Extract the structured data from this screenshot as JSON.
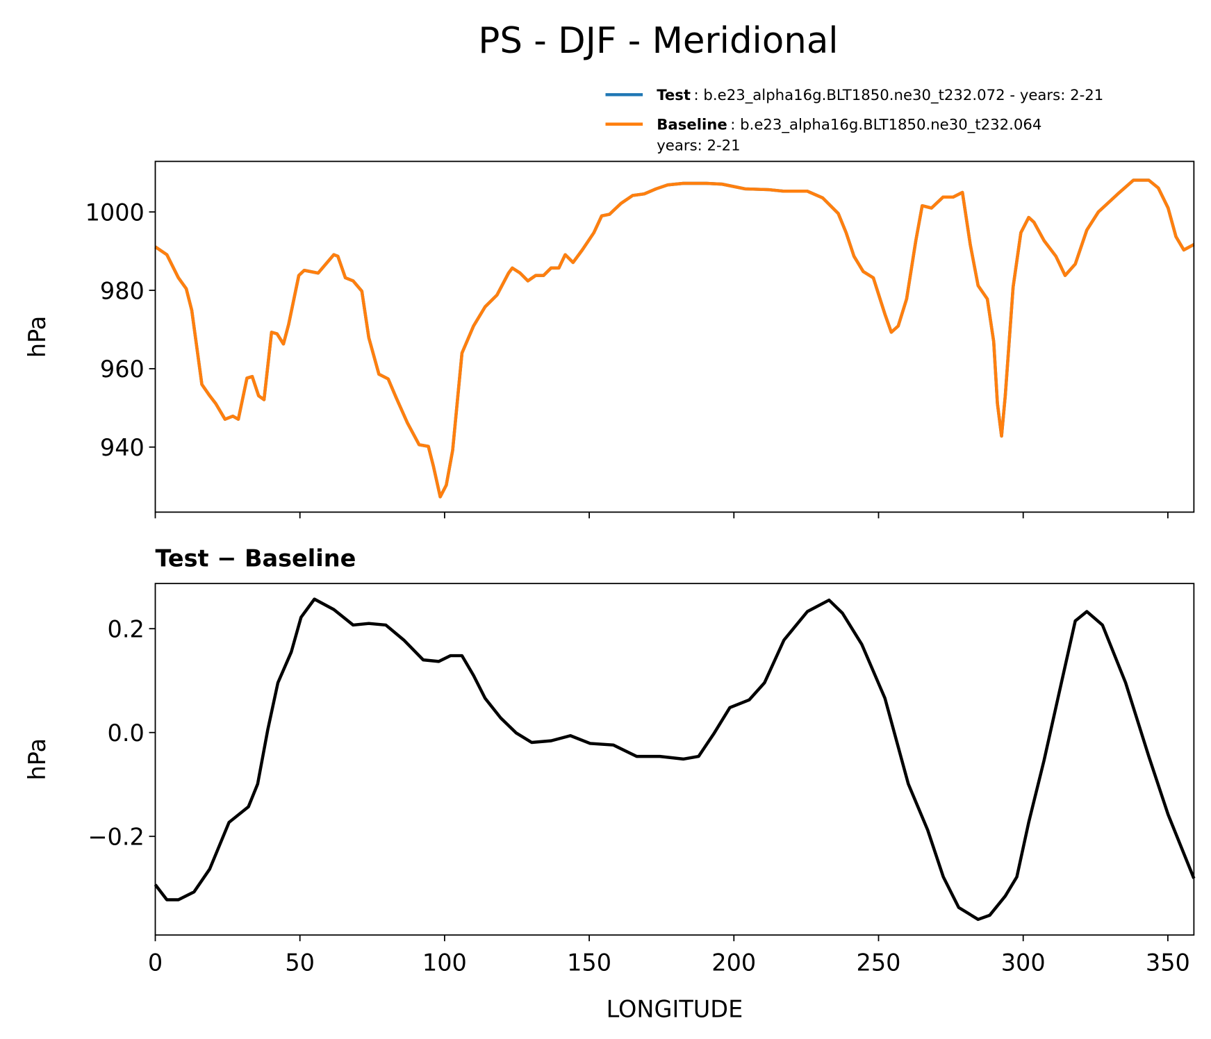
{
  "chart_data": [
    {
      "type": "line",
      "title": "PS - DJF - Meridional",
      "ylabel": "hPa",
      "x": [
        0,
        4.0,
        8.0,
        10.7,
        12.6,
        14.8,
        16.1,
        18.8,
        20.9,
        24.1,
        26.8,
        28.7,
        31.7,
        33.5,
        35.7,
        37.6,
        40.2,
        42.1,
        44.3,
        46.1,
        49.6,
        51.5,
        56.3,
        61.7,
        63.1,
        65.7,
        68.4,
        71.4,
        73.8,
        77.3,
        80.5,
        83.2,
        87.2,
        91.2,
        94.4,
        96.1,
        98.5,
        100.6,
        102.8,
        106.0,
        110.0,
        114.0,
        118.1,
        122.1,
        123.4,
        126.1,
        128.8,
        131.5,
        134.2,
        136.8,
        139.5,
        141.7,
        144.4,
        147.6,
        151.6,
        154.3,
        157.0,
        161.0,
        165.0,
        169.0,
        173.1,
        177.1,
        182.5,
        190.5,
        195.9,
        203.9,
        212.0,
        217.3,
        225.4,
        230.7,
        236.1,
        238.8,
        241.5,
        244.7,
        248.2,
        252.2,
        254.4,
        256.8,
        259.7,
        262.9,
        265.1,
        268.3,
        272.3,
        275.8,
        279.0,
        281.7,
        284.4,
        287.6,
        289.8,
        291.1,
        292.5,
        293.8,
        296.5,
        299.2,
        301.9,
        303.7,
        307.2,
        311.3,
        314.5,
        318.0,
        322.0,
        326.0,
        332.7,
        338.1,
        343.4,
        346.7,
        350.1,
        352.8,
        355.5,
        359.0
      ],
      "series": [
        {
          "name": "Test",
          "description": [
            ": b.e23_alpha16g.BLT1850.ne30_t232.072 - years: 2-21"
          ],
          "color": "#1f77b4",
          "values": [
            991.1,
            989.1,
            983.2,
            980.4,
            974.9,
            963.0,
            956.0,
            953.1,
            951.1,
            947.1,
            947.9,
            947.1,
            957.6,
            958.0,
            953.1,
            952.1,
            969.3,
            968.9,
            966.3,
            971.3,
            983.8,
            985.1,
            984.4,
            989.1,
            988.7,
            983.2,
            982.4,
            979.8,
            967.9,
            958.6,
            957.4,
            952.7,
            946.1,
            940.6,
            940.2,
            935.2,
            927.3,
            930.3,
            939.2,
            964.0,
            970.9,
            975.8,
            978.8,
            984.4,
            985.7,
            984.4,
            982.4,
            983.8,
            983.8,
            985.7,
            985.7,
            989.1,
            987.1,
            990.3,
            994.7,
            999.0,
            999.4,
            1002.2,
            1004.2,
            1004.6,
            1005.9,
            1006.9,
            1007.3,
            1007.3,
            1007.1,
            1005.9,
            1005.7,
            1005.3,
            1005.3,
            1003.6,
            999.6,
            994.7,
            988.7,
            984.8,
            983.2,
            973.9,
            969.3,
            970.9,
            977.8,
            992.7,
            1001.6,
            1001.0,
            1003.8,
            1003.8,
            1005.0,
            991.7,
            981.2,
            977.8,
            966.9,
            951.1,
            942.8,
            953.1,
            980.8,
            994.7,
            998.6,
            997.4,
            992.7,
            988.7,
            983.8,
            986.7,
            995.4,
            1000.0,
            1004.6,
            1008.1,
            1008.1,
            1006.1,
            1001.0,
            993.7,
            990.3,
            991.7
          ]
        },
        {
          "name": "Baseline",
          "description": [
            ": b.e23_alpha16g.BLT1850.ne30_t232.064",
            "years: 2-21"
          ],
          "color": "#ff7f0e",
          "values": [
            991.1,
            989.1,
            983.2,
            980.4,
            974.9,
            963.0,
            956.0,
            953.1,
            951.1,
            947.1,
            947.9,
            947.1,
            957.6,
            958.0,
            953.1,
            952.1,
            969.3,
            968.9,
            966.3,
            971.3,
            983.8,
            985.1,
            984.4,
            989.1,
            988.7,
            983.2,
            982.4,
            979.8,
            967.9,
            958.6,
            957.4,
            952.7,
            946.1,
            940.6,
            940.2,
            935.2,
            927.3,
            930.3,
            939.2,
            964.0,
            970.9,
            975.8,
            978.8,
            984.4,
            985.7,
            984.4,
            982.4,
            983.8,
            983.8,
            985.7,
            985.7,
            989.1,
            987.1,
            990.3,
            994.7,
            999.0,
            999.4,
            1002.2,
            1004.2,
            1004.6,
            1005.9,
            1006.9,
            1007.3,
            1007.3,
            1007.1,
            1005.9,
            1005.7,
            1005.3,
            1005.3,
            1003.6,
            999.6,
            994.7,
            988.7,
            984.8,
            983.2,
            973.9,
            969.3,
            970.9,
            977.8,
            992.7,
            1001.6,
            1001.0,
            1003.8,
            1003.8,
            1005.0,
            991.7,
            981.2,
            977.8,
            966.9,
            951.1,
            942.8,
            953.1,
            980.8,
            994.7,
            998.6,
            997.4,
            992.7,
            988.7,
            983.8,
            986.7,
            995.4,
            1000.0,
            1004.6,
            1008.1,
            1008.1,
            1006.1,
            1001.0,
            993.7,
            990.3,
            991.7
          ]
        }
      ],
      "xlim": [
        0,
        359
      ],
      "ylim": [
        923.4,
        1012.9
      ],
      "xticks": [
        0,
        50,
        100,
        150,
        200,
        250,
        300,
        350
      ],
      "yticks": [
        940,
        960,
        980,
        1000
      ]
    },
    {
      "type": "line",
      "title": "Test − Baseline",
      "xlabel": "LONGITUDE",
      "ylabel": "hPa",
      "x": [
        0,
        4.0,
        8.0,
        13.4,
        18.8,
        25.5,
        32.2,
        35.4,
        38.9,
        42.4,
        47.0,
        50.4,
        55.0,
        61.7,
        68.4,
        73.8,
        79.7,
        85.9,
        92.6,
        98.0,
        102.0,
        106.0,
        110.0,
        114.0,
        119.4,
        124.8,
        130.1,
        136.8,
        143.5,
        150.3,
        158.3,
        166.4,
        174.4,
        182.5,
        187.8,
        193.2,
        198.6,
        205.3,
        210.6,
        217.3,
        225.4,
        232.9,
        237.5,
        244.2,
        252.2,
        260.3,
        267.0,
        272.4,
        277.7,
        284.4,
        288.4,
        293.8,
        297.8,
        301.9,
        307.2,
        312.6,
        318.0,
        322.0,
        327.4,
        335.4,
        343.4,
        350.1,
        359.0
      ],
      "series": [
        {
          "color": "#000000",
          "values": [
            -0.293,
            -0.322,
            -0.322,
            -0.307,
            -0.263,
            -0.173,
            -0.143,
            -0.099,
            0.006,
            0.096,
            0.155,
            0.222,
            0.257,
            0.237,
            0.207,
            0.21,
            0.207,
            0.178,
            0.14,
            0.137,
            0.148,
            0.148,
            0.11,
            0.066,
            0.028,
            -0.001,
            -0.019,
            -0.016,
            -0.006,
            -0.021,
            -0.024,
            -0.046,
            -0.046,
            -0.051,
            -0.046,
            -0.001,
            0.048,
            0.063,
            0.096,
            0.178,
            0.233,
            0.255,
            0.23,
            0.17,
            0.066,
            -0.099,
            -0.188,
            -0.278,
            -0.337,
            -0.36,
            -0.352,
            -0.315,
            -0.278,
            -0.173,
            -0.054,
            0.081,
            0.215,
            0.233,
            0.207,
            0.096,
            -0.046,
            -0.158,
            -0.281
          ]
        }
      ],
      "xlim": [
        0,
        359
      ],
      "ylim": [
        -0.39,
        0.287
      ],
      "xticks": [
        0,
        50,
        100,
        150,
        200,
        250,
        300,
        350
      ],
      "yticks": [
        {
          "value": -0.2,
          "label": "−0.2"
        },
        {
          "value": 0,
          "label": "0.0"
        },
        0.2
      ]
    }
  ]
}
